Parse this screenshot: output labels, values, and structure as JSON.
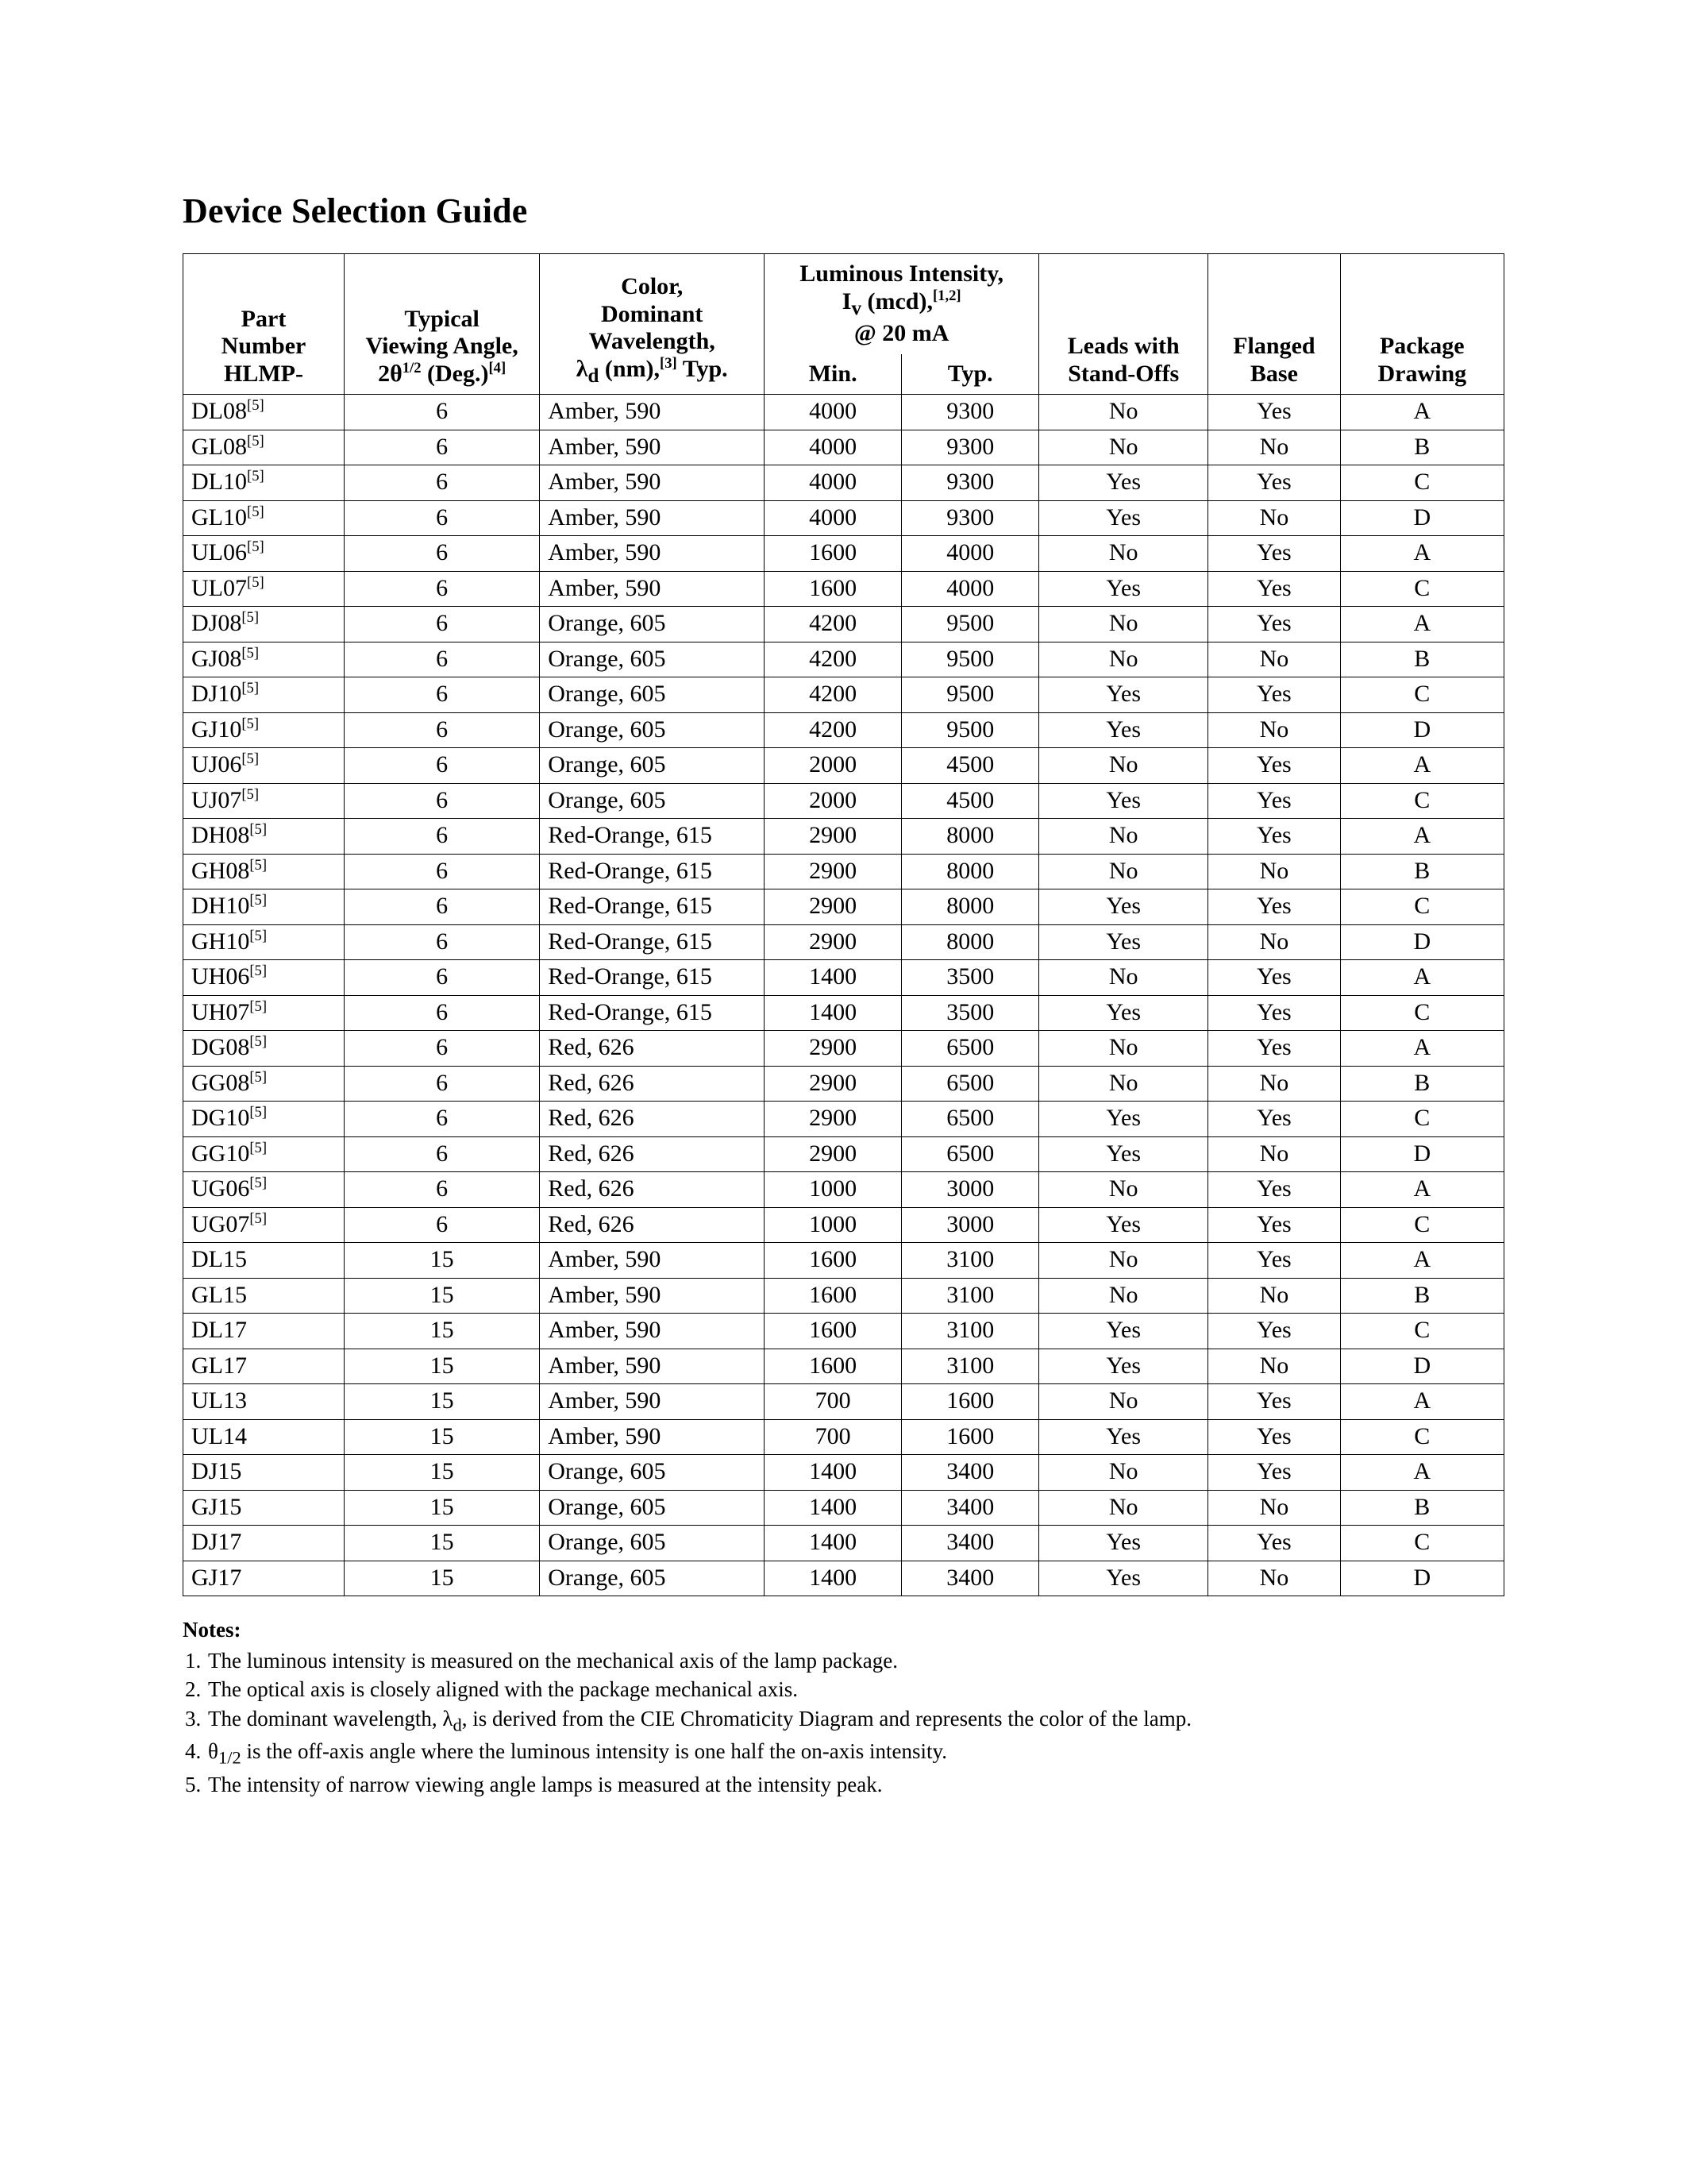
{
  "title": "Device Selection Guide",
  "headers": {
    "part_number_l1": "Part",
    "part_number_l2": "Number",
    "part_number_l3": "HLMP-",
    "viewing_l1": "Typical",
    "viewing_l2": "Viewing Angle,",
    "color_l1": "Color,",
    "color_l2": "Dominant",
    "color_l3": "Wavelength,",
    "lum_l1": "Luminous Intensity,",
    "lum_l3": "@ 20 mA",
    "min": "Min.",
    "typ": "Typ.",
    "leads_l1": "Leads with",
    "leads_l2": "Stand-Offs",
    "flanged_l1": "Flanged",
    "flanged_l2": "Base",
    "pkg_l1": "Package",
    "pkg_l2": "Drawing"
  },
  "rows": [
    {
      "pn": "DL08",
      "sup": "[5]",
      "ang": "6",
      "col": "Amber, 590",
      "min": "4000",
      "typ": "9300",
      "so": "No",
      "fb": "Yes",
      "pd": "A"
    },
    {
      "pn": "GL08",
      "sup": "[5]",
      "ang": "6",
      "col": "Amber, 590",
      "min": "4000",
      "typ": "9300",
      "so": "No",
      "fb": "No",
      "pd": "B"
    },
    {
      "pn": "DL10",
      "sup": "[5]",
      "ang": "6",
      "col": "Amber, 590",
      "min": "4000",
      "typ": "9300",
      "so": "Yes",
      "fb": "Yes",
      "pd": "C"
    },
    {
      "pn": "GL10",
      "sup": "[5]",
      "ang": "6",
      "col": "Amber, 590",
      "min": "4000",
      "typ": "9300",
      "so": "Yes",
      "fb": "No",
      "pd": "D"
    },
    {
      "pn": "UL06",
      "sup": "[5]",
      "ang": "6",
      "col": "Amber, 590",
      "min": "1600",
      "typ": "4000",
      "so": "No",
      "fb": "Yes",
      "pd": "A"
    },
    {
      "pn": "UL07",
      "sup": "[5]",
      "ang": "6",
      "col": "Amber, 590",
      "min": "1600",
      "typ": "4000",
      "so": "Yes",
      "fb": "Yes",
      "pd": "C"
    },
    {
      "pn": "DJ08",
      "sup": "[5]",
      "ang": "6",
      "col": "Orange, 605",
      "min": "4200",
      "typ": "9500",
      "so": "No",
      "fb": "Yes",
      "pd": "A"
    },
    {
      "pn": "GJ08",
      "sup": "[5]",
      "ang": "6",
      "col": "Orange, 605",
      "min": "4200",
      "typ": "9500",
      "so": "No",
      "fb": "No",
      "pd": "B"
    },
    {
      "pn": "DJ10",
      "sup": "[5]",
      "ang": "6",
      "col": "Orange, 605",
      "min": "4200",
      "typ": "9500",
      "so": "Yes",
      "fb": "Yes",
      "pd": "C"
    },
    {
      "pn": "GJ10",
      "sup": "[5]",
      "ang": "6",
      "col": "Orange, 605",
      "min": "4200",
      "typ": "9500",
      "so": "Yes",
      "fb": "No",
      "pd": "D"
    },
    {
      "pn": "UJ06",
      "sup": "[5]",
      "ang": "6",
      "col": "Orange, 605",
      "min": "2000",
      "typ": "4500",
      "so": "No",
      "fb": "Yes",
      "pd": "A"
    },
    {
      "pn": "UJ07",
      "sup": "[5]",
      "ang": "6",
      "col": "Orange, 605",
      "min": "2000",
      "typ": "4500",
      "so": "Yes",
      "fb": "Yes",
      "pd": "C"
    },
    {
      "pn": "DH08",
      "sup": "[5]",
      "ang": "6",
      "col": "Red-Orange, 615",
      "min": "2900",
      "typ": "8000",
      "so": "No",
      "fb": "Yes",
      "pd": "A"
    },
    {
      "pn": "GH08",
      "sup": "[5]",
      "ang": "6",
      "col": "Red-Orange, 615",
      "min": "2900",
      "typ": "8000",
      "so": "No",
      "fb": "No",
      "pd": "B"
    },
    {
      "pn": "DH10",
      "sup": "[5]",
      "ang": "6",
      "col": "Red-Orange, 615",
      "min": "2900",
      "typ": "8000",
      "so": "Yes",
      "fb": "Yes",
      "pd": "C"
    },
    {
      "pn": "GH10",
      "sup": "[5]",
      "ang": "6",
      "col": "Red-Orange, 615",
      "min": "2900",
      "typ": "8000",
      "so": "Yes",
      "fb": "No",
      "pd": "D"
    },
    {
      "pn": "UH06",
      "sup": "[5]",
      "ang": "6",
      "col": "Red-Orange, 615",
      "min": "1400",
      "typ": "3500",
      "so": "No",
      "fb": "Yes",
      "pd": "A"
    },
    {
      "pn": "UH07",
      "sup": "[5]",
      "ang": "6",
      "col": "Red-Orange, 615",
      "min": "1400",
      "typ": "3500",
      "so": "Yes",
      "fb": "Yes",
      "pd": "C"
    },
    {
      "pn": "DG08",
      "sup": "[5]",
      "ang": "6",
      "col": "Red, 626",
      "min": "2900",
      "typ": "6500",
      "so": "No",
      "fb": "Yes",
      "pd": "A"
    },
    {
      "pn": "GG08",
      "sup": "[5]",
      "ang": "6",
      "col": "Red, 626",
      "min": "2900",
      "typ": "6500",
      "so": "No",
      "fb": "No",
      "pd": "B"
    },
    {
      "pn": "DG10",
      "sup": "[5]",
      "ang": "6",
      "col": "Red, 626",
      "min": "2900",
      "typ": "6500",
      "so": "Yes",
      "fb": "Yes",
      "pd": "C"
    },
    {
      "pn": "GG10",
      "sup": "[5]",
      "ang": "6",
      "col": "Red, 626",
      "min": "2900",
      "typ": "6500",
      "so": "Yes",
      "fb": "No",
      "pd": "D"
    },
    {
      "pn": "UG06",
      "sup": "[5]",
      "ang": "6",
      "col": "Red, 626",
      "min": "1000",
      "typ": "3000",
      "so": "No",
      "fb": "Yes",
      "pd": "A"
    },
    {
      "pn": "UG07",
      "sup": "[5]",
      "ang": "6",
      "col": "Red, 626",
      "min": "1000",
      "typ": "3000",
      "so": "Yes",
      "fb": "Yes",
      "pd": "C"
    },
    {
      "pn": "DL15",
      "sup": "",
      "ang": "15",
      "col": "Amber, 590",
      "min": "1600",
      "typ": "3100",
      "so": "No",
      "fb": "Yes",
      "pd": "A"
    },
    {
      "pn": "GL15",
      "sup": "",
      "ang": "15",
      "col": "Amber, 590",
      "min": "1600",
      "typ": "3100",
      "so": "No",
      "fb": "No",
      "pd": "B"
    },
    {
      "pn": "DL17",
      "sup": "",
      "ang": "15",
      "col": "Amber, 590",
      "min": "1600",
      "typ": "3100",
      "so": "Yes",
      "fb": "Yes",
      "pd": "C"
    },
    {
      "pn": "GL17",
      "sup": "",
      "ang": "15",
      "col": "Amber, 590",
      "min": "1600",
      "typ": "3100",
      "so": "Yes",
      "fb": "No",
      "pd": "D"
    },
    {
      "pn": "UL13",
      "sup": "",
      "ang": "15",
      "col": "Amber, 590",
      "min": "700",
      "typ": "1600",
      "so": "No",
      "fb": "Yes",
      "pd": "A"
    },
    {
      "pn": "UL14",
      "sup": "",
      "ang": "15",
      "col": "Amber, 590",
      "min": "700",
      "typ": "1600",
      "so": "Yes",
      "fb": "Yes",
      "pd": "C"
    },
    {
      "pn": "DJ15",
      "sup": "",
      "ang": "15",
      "col": "Orange, 605",
      "min": "1400",
      "typ": "3400",
      "so": "No",
      "fb": "Yes",
      "pd": "A"
    },
    {
      "pn": "GJ15",
      "sup": "",
      "ang": "15",
      "col": "Orange, 605",
      "min": "1400",
      "typ": "3400",
      "so": "No",
      "fb": "No",
      "pd": "B"
    },
    {
      "pn": "DJ17",
      "sup": "",
      "ang": "15",
      "col": "Orange, 605",
      "min": "1400",
      "typ": "3400",
      "so": "Yes",
      "fb": "Yes",
      "pd": "C"
    },
    {
      "pn": "GJ17",
      "sup": "",
      "ang": "15",
      "col": "Orange, 605",
      "min": "1400",
      "typ": "3400",
      "so": "Yes",
      "fb": "No",
      "pd": "D"
    }
  ],
  "notes_label": "Notes:",
  "notes": [
    "The luminous intensity is measured on the mechanical axis of the lamp package.",
    "The optical axis is closely aligned with the package mechanical axis.",
    "",
    "",
    "The intensity of narrow viewing angle lamps is measured at the intensity peak."
  ]
}
